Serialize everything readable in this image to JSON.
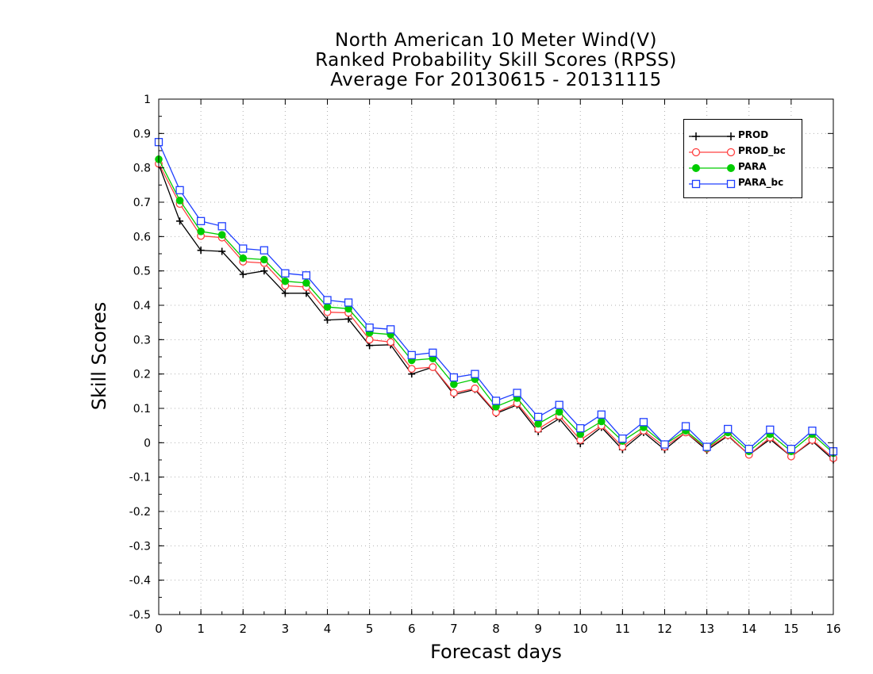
{
  "chart_data": {
    "type": "line",
    "title": [
      "North American 10 Meter Wind(V)",
      "Ranked Probability Skill Scores (RPSS)",
      "Average For 20130615 - 20131115"
    ],
    "xlabel": "Forecast days",
    "ylabel": "Skill Scores",
    "xlim": [
      0,
      16
    ],
    "ylim": [
      -0.5,
      1
    ],
    "x_ticks": [
      "0",
      "1",
      "2",
      "3",
      "4",
      "5",
      "6",
      "7",
      "8",
      "9",
      "10",
      "11",
      "12",
      "13",
      "14",
      "15",
      "16"
    ],
    "y_ticks": [
      "1",
      "0.9",
      "0.8",
      "0.7",
      "0.6",
      "0.5",
      "0.4",
      "0.3",
      "0.2",
      "0.1",
      "0",
      "-0.1",
      "-0.2",
      "-0.3",
      "-0.4",
      "-0.5"
    ],
    "grid": true,
    "legend_position": "top-right",
    "x": [
      0,
      0.5,
      1,
      1.5,
      2,
      2.5,
      3,
      3.5,
      4,
      4.5,
      5,
      5.5,
      6,
      6.5,
      7,
      7.5,
      8,
      8.5,
      9,
      9.5,
      10,
      10.5,
      11,
      11.5,
      12,
      12.5,
      13,
      13.5,
      14,
      14.5,
      15,
      15.5,
      16
    ],
    "series": [
      {
        "name": "PROD",
        "color": "#000000",
        "marker": "plus",
        "values": [
          0.81,
          0.645,
          0.56,
          0.557,
          0.49,
          0.5,
          0.435,
          0.435,
          0.357,
          0.36,
          0.283,
          0.285,
          0.2,
          0.22,
          0.14,
          0.155,
          0.085,
          0.11,
          0.032,
          0.07,
          -0.003,
          0.045,
          -0.02,
          0.03,
          -0.02,
          0.03,
          -0.022,
          0.02,
          -0.035,
          0.01,
          -0.04,
          0.005,
          -0.05
        ]
      },
      {
        "name": "PROD_bc",
        "color": "#ff4040",
        "marker": "open-circle",
        "values": [
          0.812,
          0.695,
          0.602,
          0.597,
          0.527,
          0.523,
          0.457,
          0.453,
          0.38,
          0.378,
          0.3,
          0.293,
          0.215,
          0.22,
          0.145,
          0.158,
          0.088,
          0.115,
          0.04,
          0.078,
          0.008,
          0.05,
          -0.012,
          0.035,
          -0.012,
          0.03,
          -0.017,
          0.022,
          -0.035,
          0.015,
          -0.04,
          0.008,
          -0.045
        ]
      },
      {
        "name": "PARA",
        "color": "#00cc00",
        "marker": "filled-circle",
        "values": [
          0.825,
          0.705,
          0.615,
          0.605,
          0.537,
          0.533,
          0.47,
          0.465,
          0.395,
          0.39,
          0.32,
          0.315,
          0.24,
          0.245,
          0.17,
          0.185,
          0.105,
          0.13,
          0.055,
          0.09,
          0.025,
          0.062,
          0.005,
          0.045,
          -0.005,
          0.035,
          -0.015,
          0.03,
          -0.025,
          0.025,
          -0.025,
          0.025,
          -0.03
        ]
      },
      {
        "name": "PARA_bc",
        "color": "#2040ff",
        "marker": "open-square",
        "values": [
          0.875,
          0.735,
          0.645,
          0.63,
          0.565,
          0.56,
          0.493,
          0.487,
          0.415,
          0.408,
          0.335,
          0.33,
          0.255,
          0.262,
          0.19,
          0.2,
          0.122,
          0.145,
          0.075,
          0.11,
          0.042,
          0.082,
          0.012,
          0.06,
          -0.005,
          0.048,
          -0.012,
          0.04,
          -0.018,
          0.038,
          -0.018,
          0.035,
          -0.025
        ]
      }
    ]
  }
}
